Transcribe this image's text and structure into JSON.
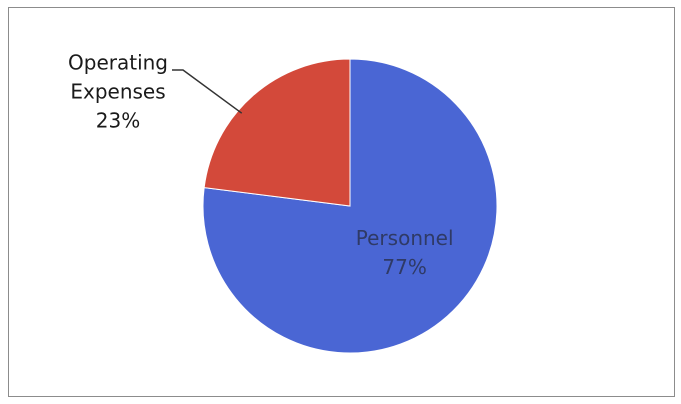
{
  "chart_data": {
    "type": "pie",
    "title": "",
    "slices": [
      {
        "label_lines": [
          "Personnel"
        ],
        "value": 77,
        "display_value": "77%",
        "color": "#4a66d4",
        "label_color": "#2f3a66",
        "label_placement": "inside"
      },
      {
        "label_lines": [
          "Operating",
          "Expenses"
        ],
        "value": 23,
        "display_value": "23%",
        "color": "#d3493a",
        "label_color": "#1a1a1a",
        "label_placement": "outside"
      }
    ],
    "start_angle_deg": 0,
    "direction": "clockwise",
    "legend": "none"
  }
}
